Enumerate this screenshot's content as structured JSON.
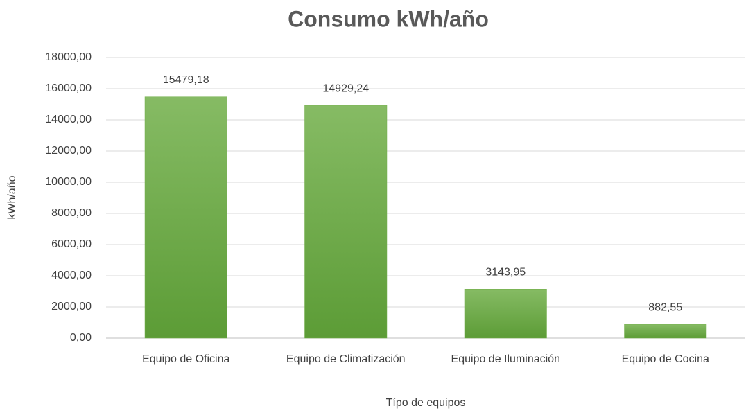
{
  "chart_data": {
    "type": "bar",
    "title": "Consumo kWh/año",
    "x_label": "Típo de equipos",
    "y_label": "kWh/año",
    "categories": [
      "Equipo de Oficina",
      "Equipo de Climatización",
      "Equipo de Iluminación",
      "Equipo de Cocina"
    ],
    "values": [
      15479.18,
      14929.24,
      3143.95,
      882.55
    ],
    "value_labels": [
      "15479,18",
      "14929,24",
      "3143,95",
      "882,55"
    ],
    "color": "#70ad47",
    "ylim": [
      0,
      18000
    ],
    "yticks": [
      {
        "value": 0,
        "label": "0,00"
      },
      {
        "value": 2000,
        "label": "2000,00"
      },
      {
        "value": 4000,
        "label": "4000,00"
      },
      {
        "value": 6000,
        "label": "6000,00"
      },
      {
        "value": 8000,
        "label": "8000,00"
      },
      {
        "value": 10000,
        "label": "10000,00"
      },
      {
        "value": 12000,
        "label": "12000,00"
      },
      {
        "value": 14000,
        "label": "14000,00"
      },
      {
        "value": 16000,
        "label": "16000,00"
      },
      {
        "value": 18000,
        "label": "18000,00"
      }
    ],
    "grid": true
  }
}
